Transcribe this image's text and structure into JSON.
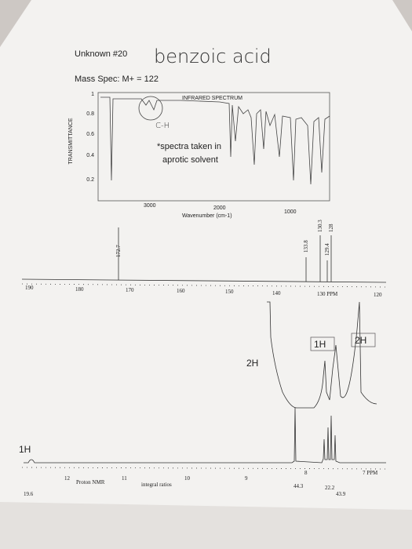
{
  "header": {
    "title": "Unknown #20",
    "handwritten_name": "benzoic acid",
    "mass_spec": "Mass Spec: M+ = 122"
  },
  "ir": {
    "title": "INFRARED SPECTRUM",
    "y_label": "TRANSMITTANCE",
    "y_ticks": [
      "1",
      "0.8",
      "0.6",
      "0.4",
      "0.2"
    ],
    "x_ticks": [
      "3000",
      "2000",
      "1000"
    ],
    "x_label": "Wavenumber (cm-1)",
    "annotation": "C-H",
    "note": [
      "*spectra taken in",
      "aprotic solvent"
    ]
  },
  "c13": {
    "peak_labels": [
      "172.7",
      "133.8",
      "130.3",
      "129.4",
      "128"
    ],
    "x_ticks": [
      "190",
      "180",
      "170",
      "160",
      "150",
      "140",
      "130 PPM",
      "120"
    ]
  },
  "h1": {
    "x_ticks": [
      "12",
      "11",
      "10",
      "9",
      "8",
      "7 PPM"
    ],
    "axis_label": "Proton NMR",
    "integral_label": "integral ratios",
    "integrals": [
      "19.6",
      "44.3",
      "22.2",
      "43.9"
    ],
    "annotations": [
      "1H",
      "2H",
      "1H",
      "2H"
    ]
  }
}
